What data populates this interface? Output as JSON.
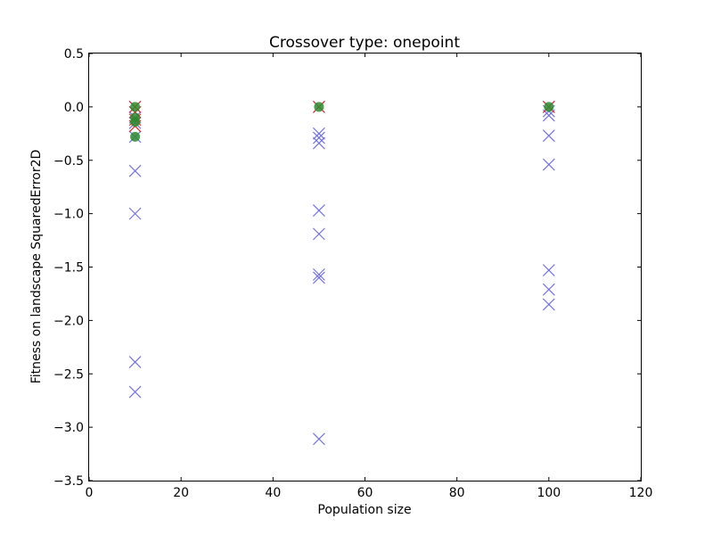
{
  "chart_data": {
    "type": "scatter",
    "title": "Crossover type: onepoint",
    "xlabel": "Population size",
    "ylabel": "Fitness on landscape SquaredError2D",
    "xlim": [
      0,
      120
    ],
    "ylim": [
      -3.5,
      0.5
    ],
    "xticks": [
      0,
      20,
      40,
      60,
      80,
      100,
      120
    ],
    "yticks": [
      0.5,
      0.0,
      -0.5,
      -1.0,
      -1.5,
      -2.0,
      -2.5,
      -3.0,
      -3.5
    ],
    "xtick_labels": [
      "0",
      "20",
      "40",
      "60",
      "80",
      "100",
      "120"
    ],
    "ytick_labels": [
      "0.5",
      "0.0",
      "−0.5",
      "−1.0",
      "−1.5",
      "−2.0",
      "−2.5",
      "−3.0",
      "−3.5"
    ],
    "grid": false,
    "series": [
      {
        "marker": "x",
        "color": "#6b6be0",
        "points": [
          {
            "x": 10,
            "y": 0.0
          },
          {
            "x": 10,
            "y": -0.05
          },
          {
            "x": 10,
            "y": -0.1
          },
          {
            "x": 10,
            "y": -0.15
          },
          {
            "x": 10,
            "y": -0.28
          },
          {
            "x": 10,
            "y": -0.6
          },
          {
            "x": 10,
            "y": -1.0
          },
          {
            "x": 10,
            "y": -2.39
          },
          {
            "x": 10,
            "y": -2.67
          },
          {
            "x": 50,
            "y": 0.0
          },
          {
            "x": 50,
            "y": -0.25
          },
          {
            "x": 50,
            "y": -0.29
          },
          {
            "x": 50,
            "y": -0.34
          },
          {
            "x": 50,
            "y": -0.97
          },
          {
            "x": 50,
            "y": -1.19
          },
          {
            "x": 50,
            "y": -1.57
          },
          {
            "x": 50,
            "y": -1.6
          },
          {
            "x": 50,
            "y": -3.11
          },
          {
            "x": 100,
            "y": 0.0
          },
          {
            "x": 100,
            "y": -0.04
          },
          {
            "x": 100,
            "y": -0.08
          },
          {
            "x": 100,
            "y": -0.27
          },
          {
            "x": 100,
            "y": -0.54
          },
          {
            "x": 100,
            "y": -1.53
          },
          {
            "x": 100,
            "y": -1.71
          },
          {
            "x": 100,
            "y": -1.85
          }
        ]
      },
      {
        "marker": "x",
        "color": "#e02020",
        "points": [
          {
            "x": 10,
            "y": 0.0
          },
          {
            "x": 10,
            "y": -0.05
          },
          {
            "x": 10,
            "y": -0.12
          },
          {
            "x": 10,
            "y": -0.18
          },
          {
            "x": 50,
            "y": 0.0
          },
          {
            "x": 100,
            "y": 0.0
          }
        ]
      },
      {
        "marker": "o",
        "color": "#2e8b2e",
        "points": [
          {
            "x": 10,
            "y": 0.0
          },
          {
            "x": 10,
            "y": -0.1
          },
          {
            "x": 10,
            "y": -0.14
          },
          {
            "x": 10,
            "y": -0.28
          },
          {
            "x": 50,
            "y": 0.0
          },
          {
            "x": 100,
            "y": 0.0
          }
        ]
      }
    ]
  }
}
